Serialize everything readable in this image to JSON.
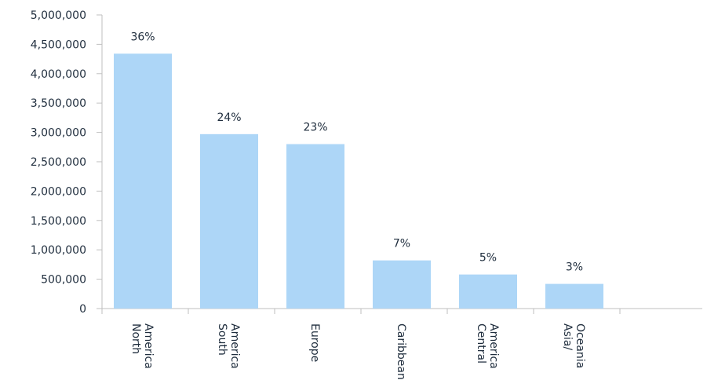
{
  "chart_data": {
    "type": "bar",
    "title": "",
    "xlabel": "",
    "ylabel": "",
    "ylim": [
      0,
      5000000
    ],
    "y_ticks": [
      "0",
      "500,000",
      "1,000,000",
      "1,500,000",
      "2,000,000",
      "2,500,000",
      "3,000,000",
      "3,500,000",
      "4,000,000",
      "4,500,000",
      "5,000,000"
    ],
    "categories": [
      [
        "North",
        "America"
      ],
      [
        "South",
        "America"
      ],
      [
        "Europe"
      ],
      [
        "Caribbean"
      ],
      [
        "Central",
        "America"
      ],
      [
        "Asia/",
        "Oceania"
      ]
    ],
    "values": [
      4340000,
      2970000,
      2800000,
      820000,
      580000,
      420000
    ],
    "data_labels": [
      "36%",
      "24%",
      "23%",
      "7%",
      "5%",
      "3%"
    ],
    "grid": false,
    "legend": "none",
    "colors": {
      "bar": "#add6f7",
      "axis": "#bfbfbf",
      "text": "#1f2d3d"
    }
  }
}
